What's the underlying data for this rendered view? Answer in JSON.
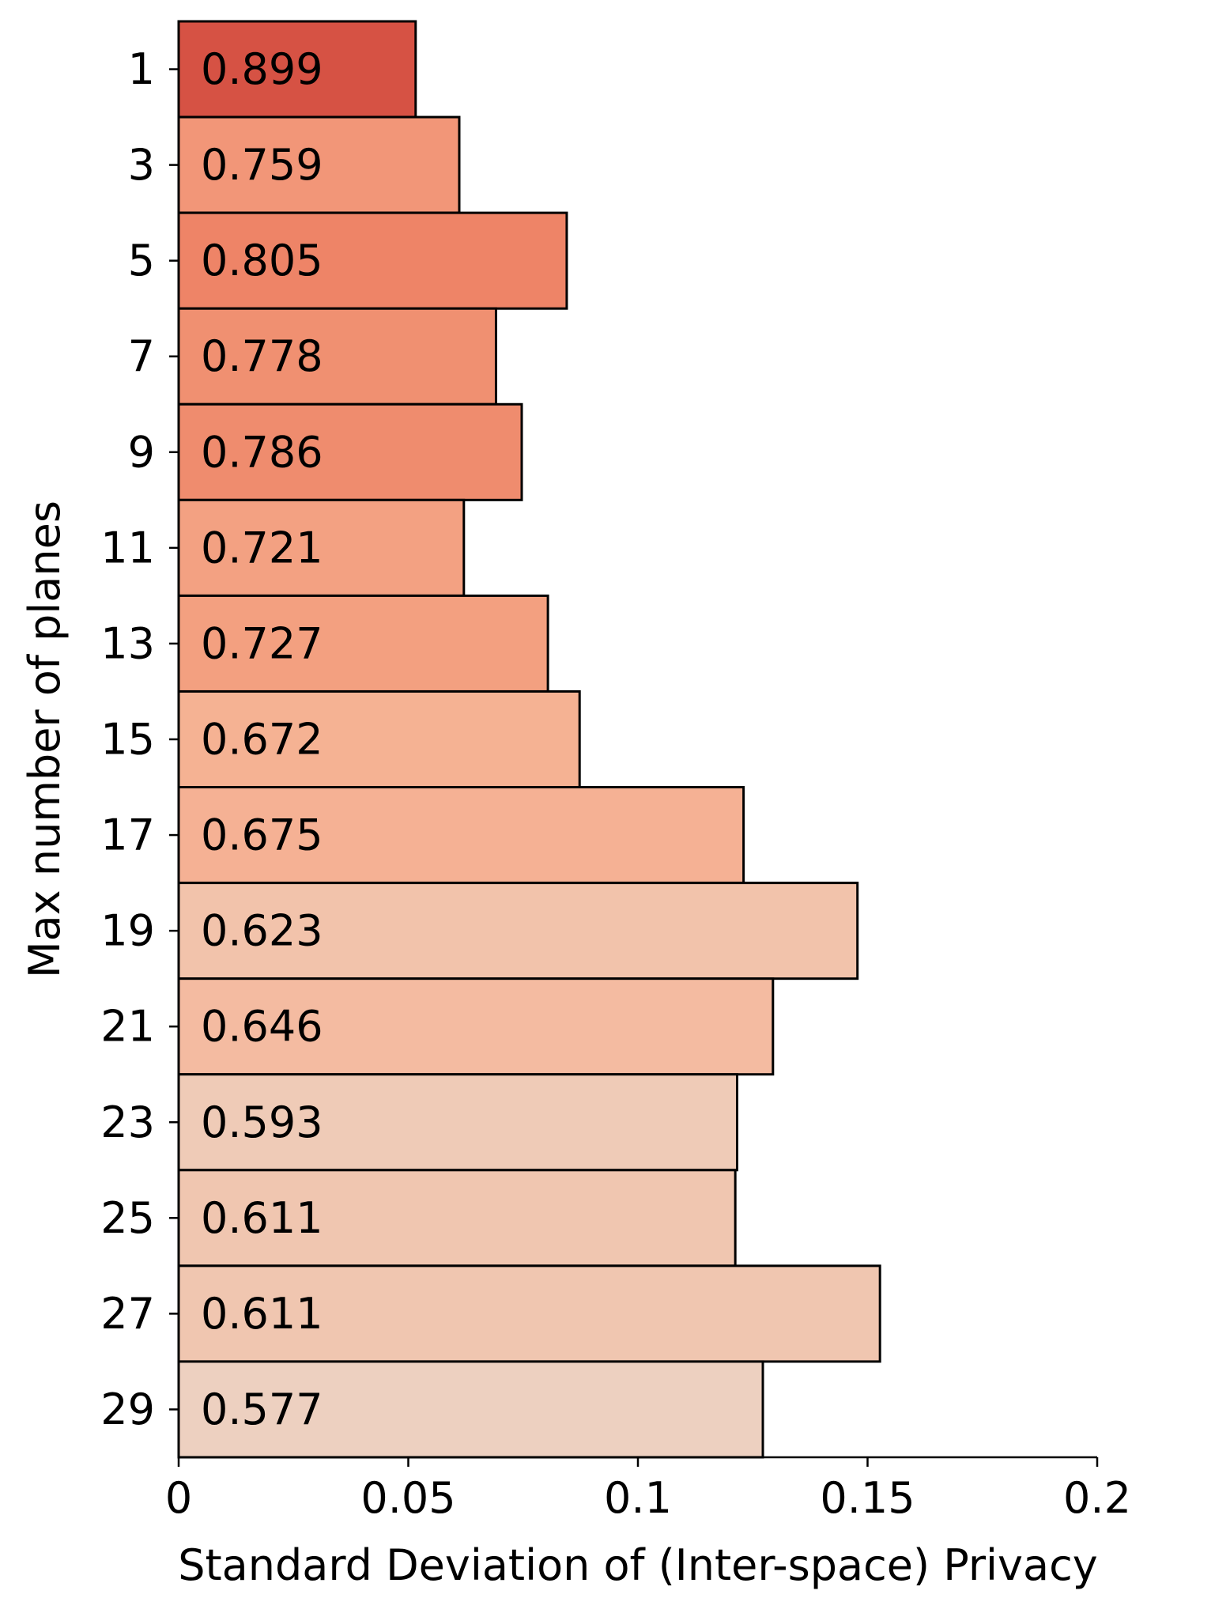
{
  "chart_data": {
    "type": "bar",
    "orientation": "horizontal",
    "title": "",
    "xlabel": "Standard Deviation of (Inter-space) Privacy",
    "ylabel": "Max number of planes",
    "xlim": [
      0,
      0.2
    ],
    "x_ticks": [
      0,
      0.05,
      0.1,
      0.15,
      0.2
    ],
    "x_tick_labels": [
      "0",
      "0.05",
      "0.1",
      "0.15",
      "0.2"
    ],
    "categories": [
      "1",
      "3",
      "5",
      "7",
      "9",
      "11",
      "13",
      "15",
      "17",
      "19",
      "21",
      "23",
      "25",
      "27",
      "29"
    ],
    "values": [
      0.0516,
      0.0611,
      0.0845,
      0.0691,
      0.0747,
      0.0621,
      0.0804,
      0.0873,
      0.123,
      0.1478,
      0.1294,
      0.1216,
      0.1212,
      0.1527,
      0.1272
    ],
    "bar_labels": [
      "0.899",
      "0.759",
      "0.805",
      "0.778",
      "0.786",
      "0.721",
      "0.727",
      "0.672",
      "0.675",
      "0.623",
      "0.646",
      "0.593",
      "0.611",
      "0.611",
      "0.577"
    ],
    "bar_colors": [
      "#d65244",
      "#f29678",
      "#ee8467",
      "#f09071",
      "#ef8c6e",
      "#f3a182",
      "#f3a080",
      "#f5b293",
      "#f5b194",
      "#f2c3ab",
      "#f4bba1",
      "#efcbb7",
      "#f0c6b0",
      "#f0c6b0",
      "#edd0c0"
    ],
    "grid": false,
    "legend": "none"
  }
}
